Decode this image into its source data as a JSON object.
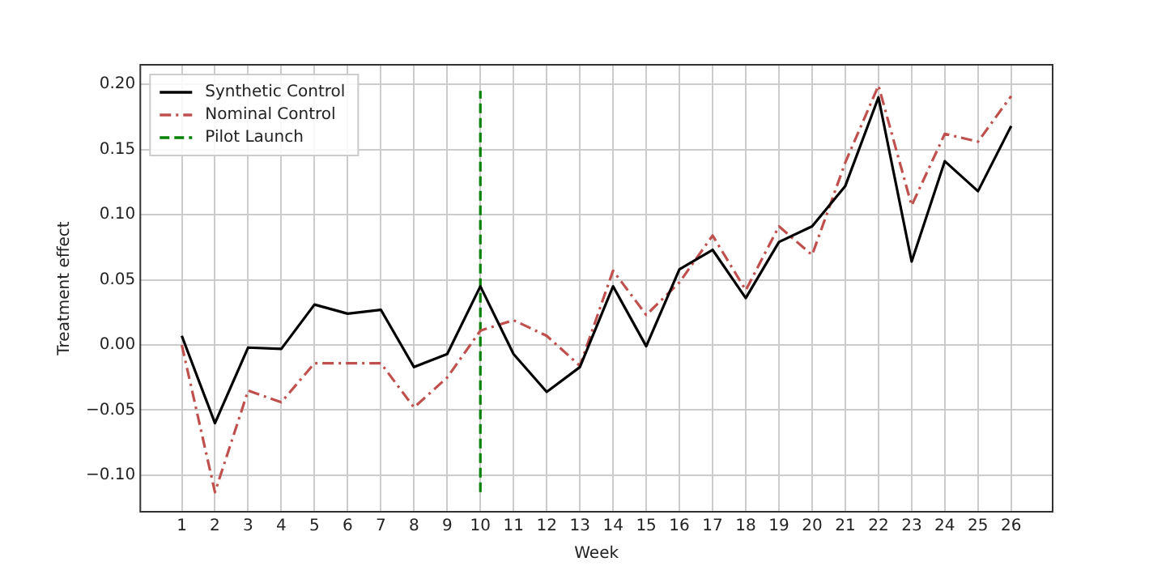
{
  "chart_data": {
    "type": "line",
    "xlabel": "Week",
    "ylabel": "Treatment effect",
    "x": [
      1,
      2,
      3,
      4,
      5,
      6,
      7,
      8,
      9,
      10,
      11,
      12,
      13,
      14,
      15,
      16,
      17,
      18,
      19,
      20,
      21,
      22,
      23,
      24,
      25,
      26
    ],
    "series": [
      {
        "name": "Synthetic Control",
        "color": "#000000",
        "line_style": "solid",
        "values": [
          0.007,
          -0.06,
          -0.002,
          -0.003,
          0.031,
          0.024,
          0.027,
          -0.017,
          -0.007,
          0.045,
          -0.007,
          -0.036,
          -0.017,
          0.045,
          -0.001,
          0.058,
          0.073,
          0.036,
          0.079,
          0.091,
          0.122,
          0.19,
          0.064,
          0.141,
          0.118,
          0.168
        ]
      },
      {
        "name": "Nominal Control",
        "color": "#c0504d",
        "line_style": "dashdot",
        "values": [
          0.0,
          -0.113,
          -0.035,
          -0.044,
          -0.014,
          -0.014,
          -0.014,
          -0.048,
          -0.025,
          0.011,
          0.019,
          0.007,
          -0.016,
          0.057,
          0.023,
          0.048,
          0.084,
          0.042,
          0.091,
          0.069,
          0.14,
          0.199,
          0.107,
          0.162,
          0.156,
          0.191
        ]
      },
      {
        "name": "Pilot Launch",
        "color": "#008000",
        "line_style": "dashed",
        "x": [
          10,
          10
        ],
        "values": [
          -0.113,
          0.195
        ]
      }
    ],
    "xlim": [
      -0.25,
      27.25
    ],
    "xticks": [
      1,
      2,
      3,
      4,
      5,
      6,
      7,
      8,
      9,
      10,
      11,
      12,
      13,
      14,
      15,
      16,
      17,
      18,
      19,
      20,
      21,
      22,
      23,
      24,
      25,
      26
    ],
    "ylim": [
      -0.128,
      0.215
    ],
    "yticks": [
      {
        "value": -0.1,
        "label": "−0.10"
      },
      {
        "value": -0.05,
        "label": "−0.05"
      },
      {
        "value": 0,
        "label": "0.00"
      },
      {
        "value": 0.05,
        "label": "0.05"
      },
      {
        "value": 0.1,
        "label": "0.10"
      },
      {
        "value": 0.15,
        "label": "0.15"
      },
      {
        "value": 0.2,
        "label": "0.20"
      }
    ],
    "grid": true,
    "legend": "top left",
    "marker": "none"
  }
}
